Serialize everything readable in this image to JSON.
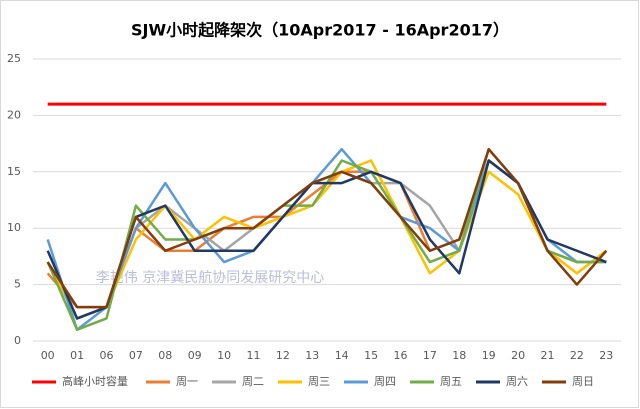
{
  "chart_data": {
    "type": "line",
    "title": "SJW小时起降架次（10Apr2017 - 16Apr2017）",
    "annotation": "李艳伟 京津冀民航协同发展研究中心",
    "categories": [
      "00",
      "01",
      "06",
      "07",
      "08",
      "09",
      "10",
      "11",
      "12",
      "13",
      "14",
      "15",
      "16",
      "17",
      "18",
      "19",
      "20",
      "21",
      "22",
      "23"
    ],
    "ylim": [
      0,
      25
    ],
    "yticks": [
      0,
      5,
      10,
      15,
      20,
      25
    ],
    "grid": true,
    "legend": "bottom",
    "series": [
      {
        "name": "高峰小时容量",
        "color": "#ff0000",
        "values": [
          21,
          21,
          21,
          21,
          21,
          21,
          21,
          21,
          21,
          21,
          21,
          21,
          21,
          21,
          21,
          21,
          21,
          21,
          21,
          21
        ]
      },
      {
        "name": "周一",
        "color": "#ed7d31",
        "values": [
          6,
          3,
          3,
          10,
          8,
          8,
          10,
          11,
          11,
          13,
          15,
          15,
          14,
          8,
          9,
          16,
          14,
          8,
          6,
          8
        ]
      },
      {
        "name": "周二",
        "color": "#a5a5a5",
        "values": [
          7,
          2,
          3,
          10,
          12,
          10,
          8,
          10,
          12,
          14,
          15,
          14,
          14,
          12,
          8,
          16,
          14,
          8,
          7,
          7
        ]
      },
      {
        "name": "周三",
        "color": "#ffc000",
        "values": [
          7,
          2,
          3,
          9,
          12,
          9,
          11,
          10,
          11,
          12,
          15,
          16,
          11,
          6,
          8,
          15,
          13,
          8,
          6,
          8
        ]
      },
      {
        "name": "周四",
        "color": "#5b9bd5",
        "values": [
          9,
          1,
          3,
          10,
          14,
          10,
          7,
          8,
          11,
          14,
          17,
          14,
          11,
          10,
          8,
          16,
          14,
          9,
          7,
          7
        ]
      },
      {
        "name": "周五",
        "color": "#70ad47",
        "values": [
          7,
          1,
          2,
          12,
          9,
          9,
          10,
          10,
          12,
          12,
          16,
          15,
          11,
          7,
          8,
          17,
          14,
          8,
          7,
          7
        ]
      },
      {
        "name": "周六",
        "color": "#203864",
        "values": [
          8,
          2,
          3,
          11,
          12,
          8,
          8,
          8,
          11,
          14,
          14,
          15,
          14,
          9,
          6,
          16,
          14,
          9,
          8,
          7
        ]
      },
      {
        "name": "周日",
        "color": "#843c0c",
        "values": [
          7,
          3,
          3,
          11,
          8,
          9,
          10,
          10,
          12,
          14,
          15,
          14,
          11,
          8,
          9,
          17,
          14,
          8,
          5,
          8
        ]
      }
    ]
  }
}
